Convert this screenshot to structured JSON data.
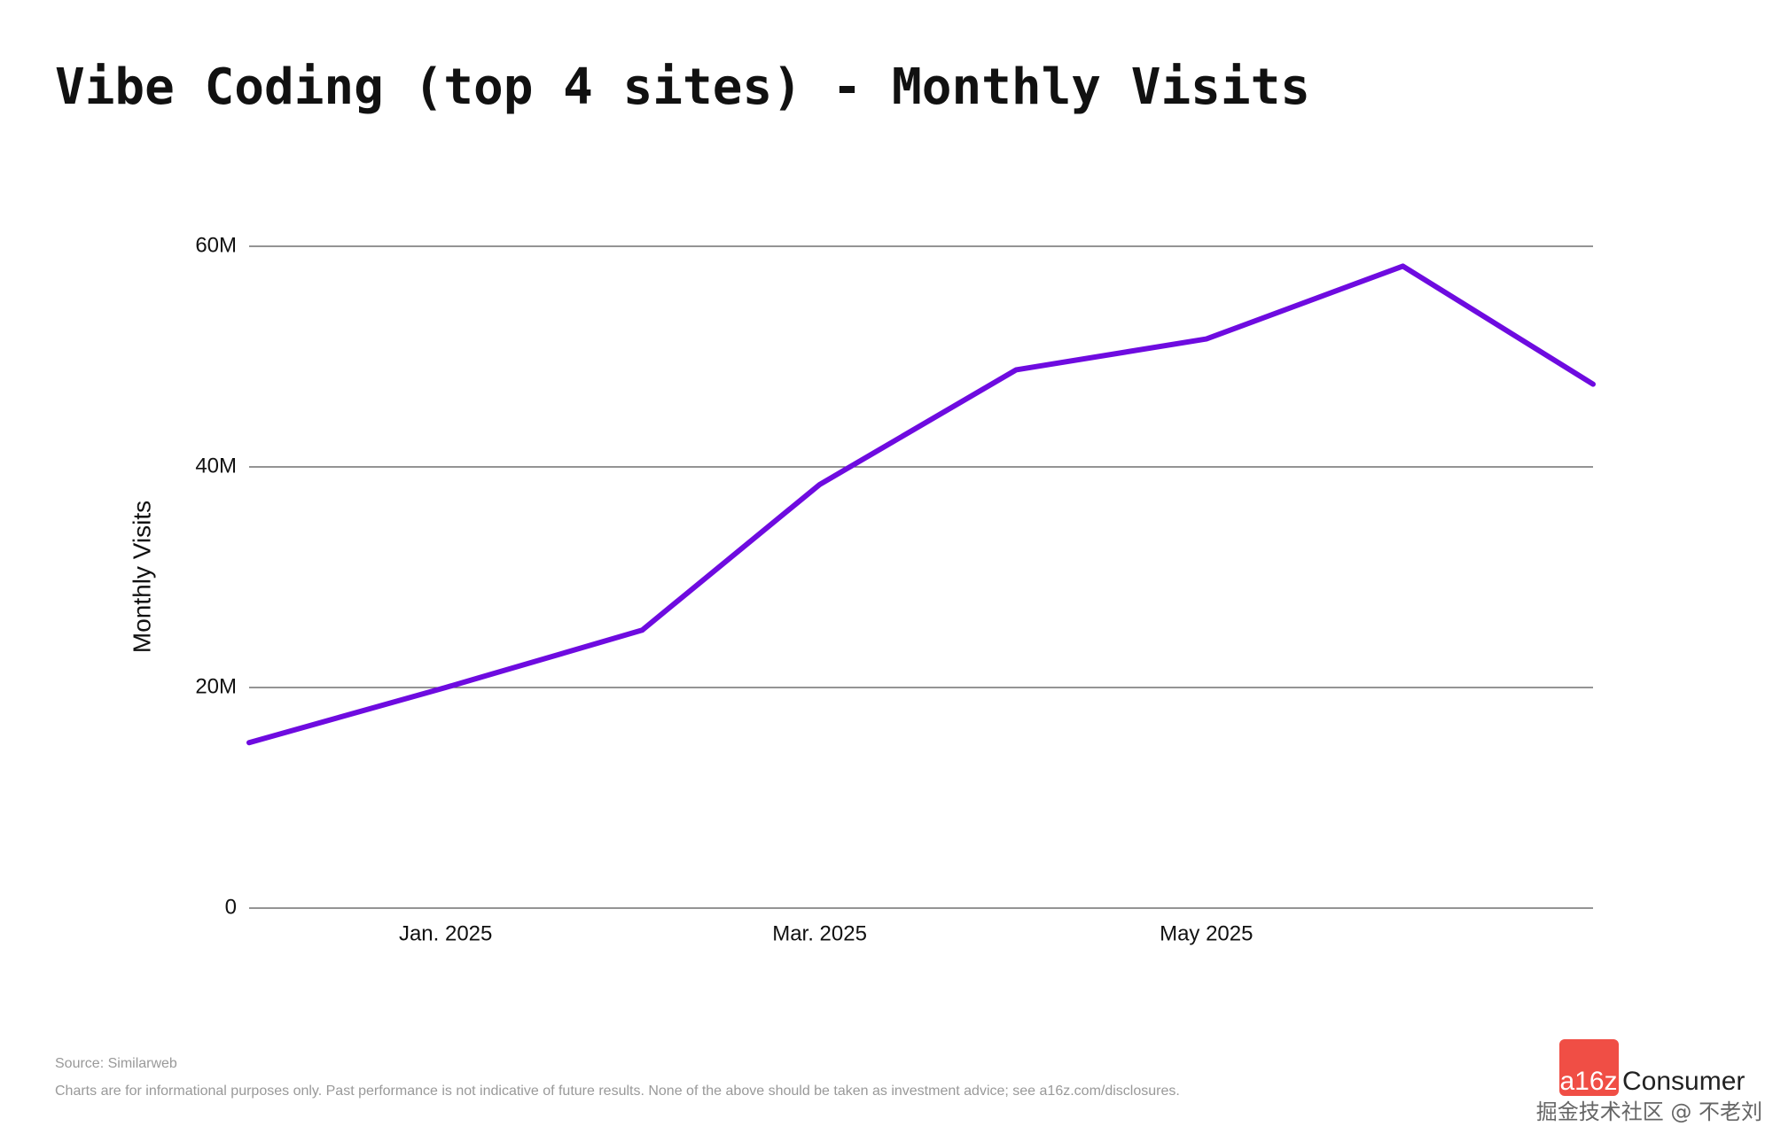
{
  "chart_data": {
    "type": "line",
    "title": "Vibe Coding (top 4 sites) - Monthly Visits",
    "y_label": "Monthly Visits",
    "x": [
      "2024-12",
      "2025-01",
      "2025-02",
      "2025-03",
      "2025-04",
      "2025-05",
      "2025-06",
      "2025-07"
    ],
    "values": [
      15000000,
      20000000,
      25200000,
      38400000,
      48800000,
      51600000,
      58200000,
      47500000
    ],
    "color": "#6e0be0",
    "xlim": [
      "2024-12",
      "2025-07"
    ],
    "xticks": [
      {
        "value": "2025-01",
        "label": "Jan. 2025"
      },
      {
        "value": "2025-03",
        "label": "Mar. 2025"
      },
      {
        "value": "2025-05",
        "label": "May 2025"
      }
    ],
    "ylim": [
      0,
      60000000
    ],
    "yticks": [
      0,
      {
        "value": 20000000,
        "label": "20M"
      },
      {
        "value": 40000000,
        "label": "40M"
      },
      {
        "value": 60000000,
        "label": "60M"
      }
    ],
    "grid": true,
    "source": "Source: Similarweb",
    "note": "Charts are for informational purposes only. Past performance is not indicative of future results. None of the above should be taken as investment advice; see a16z.com/disclosures."
  },
  "branding": {
    "logo_mark": "a16z",
    "logo_text": "Consumer",
    "watermark": "掘金技术社区 @ 不老刘"
  }
}
